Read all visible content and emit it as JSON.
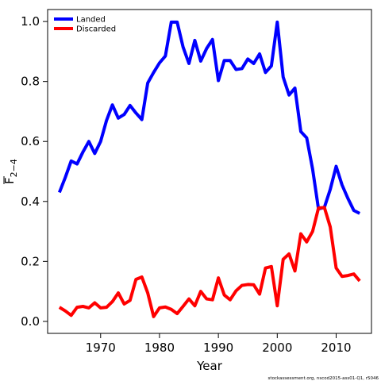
{
  "chart_data": {
    "type": "line",
    "title": "",
    "xlabel": "Year",
    "ylabel": "F",
    "ylabel_subscript": "2−4",
    "xlim": [
      1961,
      2016
    ],
    "ylim": [
      -0.04,
      1.04
    ],
    "x_ticks": [
      1970,
      1980,
      1990,
      2000,
      2010
    ],
    "y_ticks": [
      0.0,
      0.2,
      0.4,
      0.6,
      0.8,
      1.0
    ],
    "y_tick_labels": [
      "0.0",
      "0.2",
      "0.4",
      "0.6",
      "0.8",
      "1.0"
    ],
    "grid": false,
    "legend_position": "top-left",
    "x": [
      1963,
      1964,
      1965,
      1966,
      1967,
      1968,
      1969,
      1970,
      1971,
      1972,
      1973,
      1974,
      1975,
      1976,
      1977,
      1978,
      1979,
      1980,
      1981,
      1982,
      1983,
      1984,
      1985,
      1986,
      1987,
      1988,
      1989,
      1990,
      1991,
      1992,
      1993,
      1994,
      1995,
      1996,
      1997,
      1998,
      1999,
      2000,
      2001,
      2002,
      2003,
      2004,
      2005,
      2006,
      2007,
      2008,
      2009,
      2010,
      2011,
      2012,
      2013,
      2014
    ],
    "series": [
      {
        "name": "Landed",
        "color": "#0000ff",
        "values": [
          0.43,
          0.48,
          0.535,
          0.525,
          0.565,
          0.6,
          0.56,
          0.6,
          0.67,
          0.722,
          0.678,
          0.69,
          0.72,
          0.695,
          0.673,
          0.795,
          0.83,
          0.862,
          0.885,
          0.998,
          0.998,
          0.915,
          0.86,
          0.937,
          0.868,
          0.91,
          0.94,
          0.803,
          0.87,
          0.87,
          0.84,
          0.843,
          0.875,
          0.86,
          0.892,
          0.83,
          0.852,
          0.998,
          0.815,
          0.755,
          0.778,
          0.633,
          0.612,
          0.508,
          0.375,
          0.38,
          0.44,
          0.517,
          0.455,
          0.41,
          0.37,
          0.36
        ]
      },
      {
        "name": "Discarded",
        "color": "#ff0000",
        "values": [
          0.047,
          0.035,
          0.02,
          0.047,
          0.05,
          0.045,
          0.062,
          0.045,
          0.047,
          0.066,
          0.095,
          0.058,
          0.07,
          0.14,
          0.148,
          0.095,
          0.016,
          0.045,
          0.048,
          0.04,
          0.026,
          0.05,
          0.075,
          0.052,
          0.1,
          0.075,
          0.072,
          0.145,
          0.088,
          0.072,
          0.102,
          0.12,
          0.123,
          0.122,
          0.091,
          0.178,
          0.183,
          0.052,
          0.207,
          0.225,
          0.168,
          0.292,
          0.265,
          0.3,
          0.378,
          0.38,
          0.315,
          0.178,
          0.15,
          0.153,
          0.158,
          0.135
        ]
      }
    ]
  },
  "source_text": "stockassessment.org, nscod2015-ass01-Q1, r5046"
}
